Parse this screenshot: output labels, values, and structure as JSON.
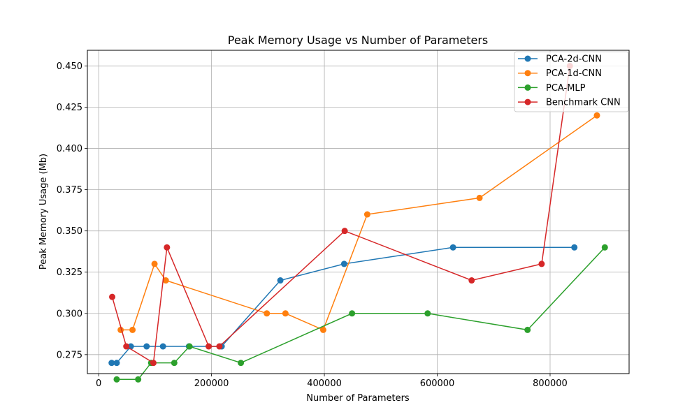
{
  "chart_data": {
    "type": "line",
    "title": "Peak Memory Usage vs Number of Parameters",
    "xlabel": "Number of Parameters",
    "ylabel": "Peak Memory Usage  (Mb)",
    "xlim": [
      -20000,
      940000
    ],
    "ylim": [
      0.2635,
      0.4595
    ],
    "xticks": [
      0,
      200000,
      400000,
      600000,
      800000
    ],
    "xtick_labels": [
      "0",
      "200000",
      "400000",
      "600000",
      "800000"
    ],
    "yticks": [
      0.275,
      0.3,
      0.325,
      0.35,
      0.375,
      0.4,
      0.425,
      0.45
    ],
    "ytick_labels": [
      "0.275",
      "0.300",
      "0.325",
      "0.350",
      "0.375",
      "0.400",
      "0.425",
      "0.450"
    ],
    "grid": true,
    "legend_position": "top-right",
    "series": [
      {
        "name": "PCA-2d-CNN",
        "color": "#1f77b4",
        "x": [
          23000,
          32000,
          57000,
          85000,
          114000,
          160000,
          218000,
          322000,
          435000,
          628000,
          843000
        ],
        "y": [
          0.27,
          0.27,
          0.28,
          0.28,
          0.28,
          0.28,
          0.28,
          0.32,
          0.33,
          0.34,
          0.34
        ]
      },
      {
        "name": "PCA-1d-CNN",
        "color": "#ff7f0e",
        "x": [
          39000,
          60000,
          99000,
          119000,
          298000,
          331000,
          398000,
          476000,
          675000,
          883000
        ],
        "y": [
          0.29,
          0.29,
          0.33,
          0.32,
          0.3,
          0.3,
          0.29,
          0.36,
          0.37,
          0.42
        ]
      },
      {
        "name": "PCA-MLP",
        "color": "#2ca02c",
        "x": [
          32000,
          70000,
          93000,
          134000,
          161000,
          252000,
          449000,
          583000,
          760000,
          897000
        ],
        "y": [
          0.26,
          0.26,
          0.27,
          0.27,
          0.28,
          0.27,
          0.3,
          0.3,
          0.29,
          0.34
        ]
      },
      {
        "name": "Benchmark CNN",
        "color": "#d62728",
        "x": [
          24000,
          49000,
          97000,
          121000,
          195000,
          214000,
          436000,
          661000,
          785000,
          835000
        ],
        "y": [
          0.31,
          0.28,
          0.27,
          0.34,
          0.28,
          0.28,
          0.35,
          0.32,
          0.33,
          0.45
        ]
      }
    ]
  }
}
